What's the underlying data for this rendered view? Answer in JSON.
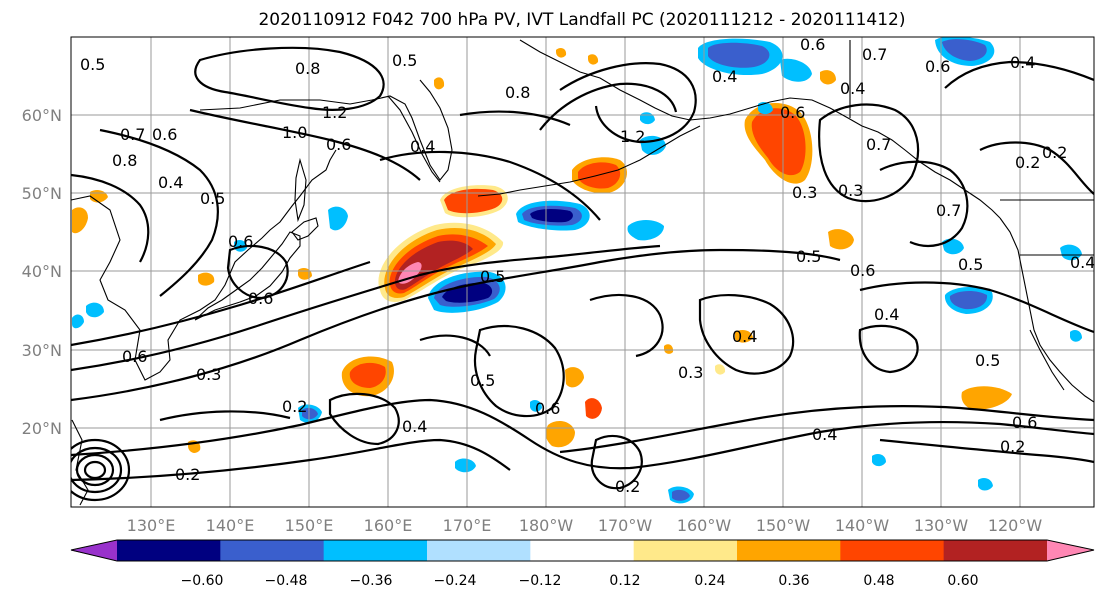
{
  "title": "2020110912 F042 700 hPa PV, IVT Landfall PC (2020111212 - 2020111412)",
  "map": {
    "lon_ticks": [
      "130°E",
      "140°E",
      "150°E",
      "160°E",
      "170°E",
      "180°W",
      "170°W",
      "160°W",
      "150°W",
      "140°W",
      "130°W",
      "120°W"
    ],
    "lat_ticks": [
      "60°N",
      "50°N",
      "40°N",
      "30°N",
      "20°N"
    ],
    "contour_labels": [
      "0.5",
      "0.8",
      "0.5",
      "0.6",
      "0.7",
      "0.4",
      "0.6",
      "0.7",
      "0.6",
      "0.4",
      "0.8",
      "1.0",
      "1.2",
      "0.6",
      "0.4",
      "0.3",
      "0.5",
      "0.5",
      "0.6",
      "0.6",
      "0.3",
      "0.2",
      "0.2",
      "0.2",
      "0.4",
      "0.5",
      "0.6",
      "0.4",
      "0.3",
      "0.4",
      "0.5",
      "0.6",
      "0.4",
      "0.7",
      "0.5",
      "0.4",
      "0.6",
      "0.5",
      "0.2",
      "0.2",
      "0.8",
      "0.4",
      "1.2",
      "0.6",
      "0.3",
      "0.7",
      "0.4",
      "0.6",
      "0.2"
    ],
    "colors": {
      "pos": [
        "#ffe98a",
        "#ffa500",
        "#ff4500",
        "#b22222",
        "#ff87b4"
      ],
      "neg": [
        "#a8dcff",
        "#00bfff",
        "#3a5fcd",
        "#000080",
        "#9932cc"
      ]
    }
  },
  "colorbar": {
    "tick_labels": [
      "−0.60",
      "−0.48",
      "−0.36",
      "−0.24",
      "−0.12",
      "0.12",
      "0.24",
      "0.36",
      "0.48",
      "0.60"
    ],
    "colors": [
      "#9932cc",
      "#000080",
      "#3a5fcd",
      "#00bfff",
      "#b0e0ff",
      "#ffffff",
      "#ffe98a",
      "#ffa500",
      "#ff4500",
      "#b22222",
      "#ff87b4"
    ]
  }
}
